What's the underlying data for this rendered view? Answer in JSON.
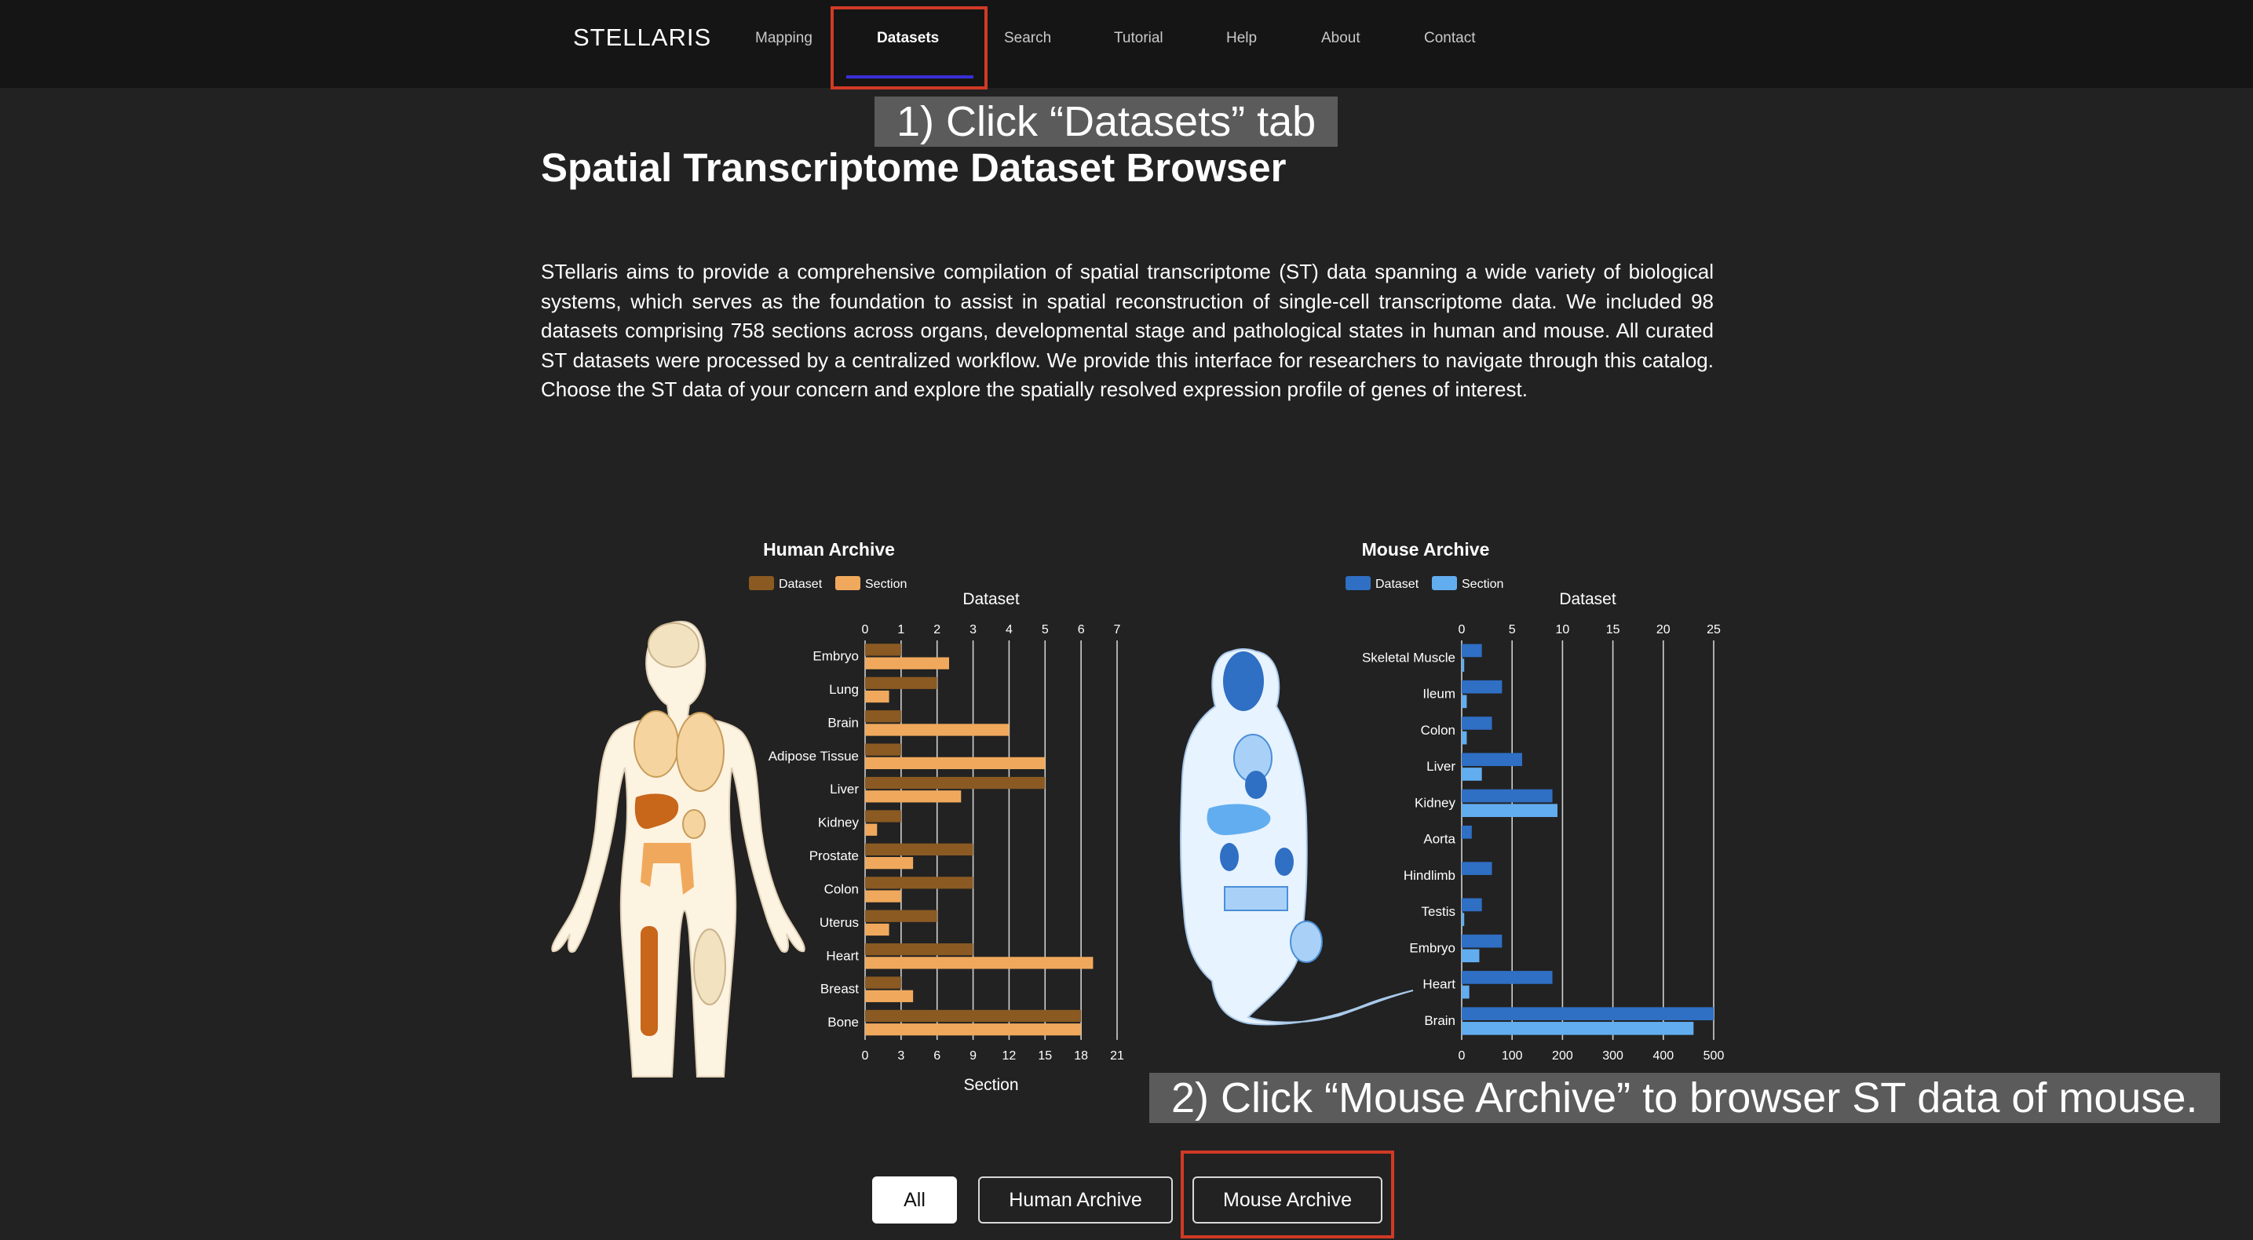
{
  "nav": {
    "brand": "STELLARIS",
    "items": [
      "Mapping",
      "Datasets",
      "Search",
      "Tutorial",
      "Help",
      "About",
      "Contact"
    ],
    "active": "Datasets"
  },
  "callouts": {
    "step1": "1) Click “Datasets” tab",
    "step2": "2) Click “Mouse Archive” to browser ST data of mouse."
  },
  "main": {
    "title": "Spatial Transcriptome Dataset Browser",
    "intro": "STellaris aims to provide a comprehensive compilation of spatial transcriptome (ST) data spanning a wide variety of biological systems, which serves as the foundation to assist in spatial reconstruction of single-cell transcriptome data. We included 98 datasets comprising 758 sections across organs, developmental stage and pathological states in human and mouse. All curated ST datasets were processed by a centralized workflow. We provide this interface for researchers to navigate through this catalog. Choose the ST data of your concern and explore the spatially resolved expression profile of genes of interest."
  },
  "filters": {
    "buttons": [
      "All",
      "Human Archive",
      "Mouse Archive"
    ],
    "selected": "All"
  },
  "colors": {
    "human_dataset": "#8a5a22",
    "human_section": "#f0a95c",
    "mouse_dataset": "#2f6fc4",
    "mouse_section": "#62adf0",
    "nav_active_underline": "#3a2fd6",
    "annotation_box": "#d13a25"
  },
  "chart_data": [
    {
      "type": "bar",
      "orientation": "horizontal",
      "title": "Human Archive",
      "categories": [
        "Embryo",
        "Lung",
        "Brain",
        "Adipose Tissue",
        "Liver",
        "Kidney",
        "Prostate",
        "Colon",
        "Uterus",
        "Heart",
        "Breast",
        "Bone"
      ],
      "series": [
        {
          "name": "Dataset",
          "axis": "top",
          "values": [
            1,
            2,
            1,
            1,
            5,
            1,
            3,
            3,
            2,
            3,
            1,
            6
          ]
        },
        {
          "name": "Section",
          "axis": "bottom",
          "values": [
            7,
            2,
            12,
            15,
            8,
            1,
            4,
            3,
            2,
            19,
            4,
            18
          ]
        }
      ],
      "top_axis": {
        "label": "Dataset",
        "range": [
          0,
          7
        ],
        "ticks": [
          0,
          1,
          2,
          3,
          4,
          5,
          6,
          7
        ]
      },
      "bottom_axis": {
        "label": "Section",
        "range": [
          0,
          21
        ],
        "ticks": [
          0,
          3,
          6,
          9,
          12,
          15,
          18,
          21
        ]
      },
      "legend": "top-left",
      "grid": true,
      "illustration": "human-anatomy"
    },
    {
      "type": "bar",
      "orientation": "horizontal",
      "title": "Mouse Archive",
      "categories": [
        "Skeletal Muscle",
        "Ileum",
        "Colon",
        "Liver",
        "Kidney",
        "Aorta",
        "Hindlimb",
        "Testis",
        "Embryo",
        "Heart",
        "Brain"
      ],
      "series": [
        {
          "name": "Dataset",
          "axis": "top",
          "values": [
            2,
            4,
            3,
            6,
            9,
            1,
            3,
            2,
            4,
            9,
            25
          ]
        },
        {
          "name": "Section",
          "axis": "bottom",
          "values": [
            5,
            10,
            10,
            40,
            190,
            0,
            0,
            5,
            35,
            15,
            460
          ]
        }
      ],
      "top_axis": {
        "label": "Dataset",
        "range": [
          0,
          25
        ],
        "ticks": [
          0,
          5,
          10,
          15,
          20,
          25
        ]
      },
      "bottom_axis": {
        "label": "",
        "range": [
          0,
          500
        ],
        "ticks": [
          0,
          100,
          200,
          300,
          400,
          500
        ]
      },
      "legend": "top-left",
      "grid": true,
      "illustration": "mouse-anatomy"
    }
  ]
}
